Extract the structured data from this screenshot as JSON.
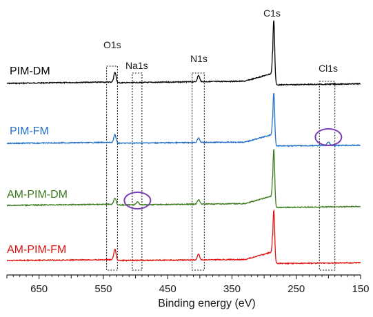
{
  "chart_data": {
    "type": "line",
    "xlabel": "Binding energy (eV)",
    "xlim": [
      700,
      150
    ],
    "x_ticks": [
      "650",
      "550",
      "450",
      "350",
      "250",
      "150"
    ],
    "x_tick_values": [
      650,
      550,
      450,
      350,
      250,
      150
    ],
    "grid": false,
    "series": [
      {
        "name": "PIM-DM",
        "color": "#000000",
        "peaks": [
          {
            "x": 532,
            "h": 14,
            "w": 2.5
          },
          {
            "x": 402,
            "h": 9,
            "w": 2.5
          },
          {
            "x": 285,
            "h": 95,
            "w": 2.0
          }
        ]
      },
      {
        "name": "PIM-FM",
        "color": "#1f6fc6",
        "peaks": [
          {
            "x": 532,
            "h": 11,
            "w": 2.5
          },
          {
            "x": 402,
            "h": 7,
            "w": 2.5
          },
          {
            "x": 285,
            "h": 78,
            "w": 2.0
          },
          {
            "x": 200,
            "h": 5,
            "w": 3.0
          }
        ]
      },
      {
        "name": "AM-PIM-DM",
        "color": "#3b7a1e",
        "peaks": [
          {
            "x": 532,
            "h": 9,
            "w": 2.5
          },
          {
            "x": 497,
            "h": 4,
            "w": 3.0
          },
          {
            "x": 402,
            "h": 7,
            "w": 2.5
          },
          {
            "x": 285,
            "h": 85,
            "w": 2.0
          }
        ]
      },
      {
        "name": "AM-PIM-FM",
        "color": "#e01010",
        "peaks": [
          {
            "x": 532,
            "h": 15,
            "w": 2.5
          },
          {
            "x": 402,
            "h": 8,
            "w": 2.5
          },
          {
            "x": 285,
            "h": 78,
            "w": 2.0
          }
        ]
      }
    ],
    "annotations": [
      {
        "text": "O1s",
        "x_range": [
          545,
          528
        ]
      },
      {
        "text": "Na1s",
        "x_range": [
          505,
          490
        ]
      },
      {
        "text": "N1s",
        "x_range": [
          412,
          393
        ]
      },
      {
        "text": "C1s",
        "x_center": 285
      },
      {
        "text": "Cl1s",
        "x_range": [
          214,
          190
        ]
      }
    ],
    "circles": [
      {
        "series": "PIM-FM",
        "x_center": 200
      },
      {
        "series": "AM-PIM-DM",
        "x_center": 497
      }
    ],
    "circle_color": "#7a3fb3"
  }
}
